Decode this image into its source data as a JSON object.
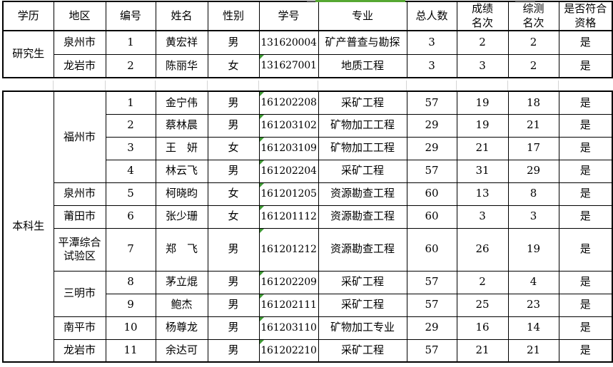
{
  "sheet": {
    "headers": [
      "学历",
      "地区",
      "编号",
      "姓名",
      "性别",
      "学号",
      "专业",
      "总人数",
      "成绩\n名次",
      "综测\n名次",
      "是否符合\n资格"
    ]
  },
  "sections": [
    {
      "education": "研究生",
      "groups": [
        {
          "region": "泉州市",
          "rows": [
            {
              "no": "1",
              "name": "黄宏祥",
              "gender": "男",
              "student_id": "131620004",
              "major": "矿产普查与勘探",
              "total": "3",
              "grade_rank": "2",
              "overall_rank": "2",
              "qualified": "是",
              "id_text_flag": false
            }
          ]
        },
        {
          "region": "龙岩市",
          "rows": [
            {
              "no": "2",
              "name": "陈丽华",
              "gender": "女",
              "student_id": "131627001",
              "major": "地质工程",
              "total": "3",
              "grade_rank": "3",
              "overall_rank": "2",
              "qualified": "是",
              "id_text_flag": true
            }
          ]
        }
      ]
    },
    {
      "education": "本科生",
      "groups": [
        {
          "region": "福州市",
          "rows": [
            {
              "no": "1",
              "name": "金宁伟",
              "gender": "男",
              "student_id": "161202208",
              "major": "采矿工程",
              "total": "57",
              "grade_rank": "19",
              "overall_rank": "18",
              "qualified": "是",
              "id_text_flag": true
            },
            {
              "no": "2",
              "name": "蔡林晨",
              "gender": "男",
              "student_id": "161203102",
              "major": "矿物加工工程",
              "total": "29",
              "grade_rank": "19",
              "overall_rank": "21",
              "qualified": "是",
              "id_text_flag": true
            },
            {
              "no": "3",
              "name": "王　妍",
              "gender": "女",
              "student_id": "161203109",
              "major": "矿物加工工程",
              "total": "29",
              "grade_rank": "21",
              "overall_rank": "17",
              "qualified": "是",
              "id_text_flag": true
            },
            {
              "no": "4",
              "name": "林云飞",
              "gender": "男",
              "student_id": "161202204",
              "major": "采矿工程",
              "total": "57",
              "grade_rank": "31",
              "overall_rank": "29",
              "qualified": "是",
              "id_text_flag": true
            }
          ]
        },
        {
          "region": "泉州市",
          "rows": [
            {
              "no": "5",
              "name": "柯晓昀",
              "gender": "女",
              "student_id": "161201205",
              "major": "资源勘查工程",
              "total": "60",
              "grade_rank": "13",
              "overall_rank": "8",
              "qualified": "是",
              "id_text_flag": true
            }
          ]
        },
        {
          "region": "莆田市",
          "rows": [
            {
              "no": "6",
              "name": "张少珊",
              "gender": "女",
              "student_id": "161201112",
              "major": "资源勘查工程",
              "total": "60",
              "grade_rank": "3",
              "overall_rank": "3",
              "qualified": "是",
              "id_text_flag": true
            }
          ]
        },
        {
          "region": "平潭综合试验区",
          "rows": [
            {
              "no": "7",
              "name": "郑　飞",
              "gender": "男",
              "student_id": "161201212",
              "major": "资源勘查工程",
              "total": "60",
              "grade_rank": "26",
              "overall_rank": "19",
              "qualified": "是",
              "id_text_flag": true
            }
          ]
        },
        {
          "region": "三明市",
          "rows": [
            {
              "no": "8",
              "name": "茅立焜",
              "gender": "男",
              "student_id": "161202209",
              "major": "采矿工程",
              "total": "57",
              "grade_rank": "2",
              "overall_rank": "4",
              "qualified": "是",
              "id_text_flag": true
            },
            {
              "no": "9",
              "name": "鲍杰",
              "gender": "男",
              "student_id": "161202111",
              "major": "采矿工程",
              "total": "57",
              "grade_rank": "25",
              "overall_rank": "23",
              "qualified": "是",
              "id_text_flag": true
            }
          ]
        },
        {
          "region": "南平市",
          "rows": [
            {
              "no": "10",
              "name": "杨尊龙",
              "gender": "男",
              "student_id": "161203110",
              "major": "矿物加工专业",
              "total": "29",
              "grade_rank": "16",
              "overall_rank": "14",
              "qualified": "是",
              "id_text_flag": true
            }
          ]
        },
        {
          "region": "龙岩市",
          "rows": [
            {
              "no": "11",
              "name": "余达可",
              "gender": "男",
              "student_id": "161202210",
              "major": "采矿工程",
              "total": "57",
              "grade_rank": "21",
              "overall_rank": "21",
              "qualified": "是",
              "id_text_flag": true
            }
          ]
        }
      ]
    }
  ],
  "colors": {
    "grid_line": "#000000",
    "faint_grid_line": "#d4d4d4",
    "selection_green": "#56a832",
    "text_flag_green": "#3f9b35"
  }
}
